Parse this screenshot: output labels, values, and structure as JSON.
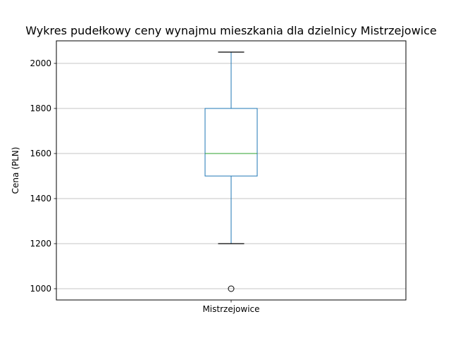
{
  "chart_data": {
    "type": "box",
    "title": "Wykres pudełkowy ceny wynajmu mieszkania dla dzielnicy  Mistrzejowice",
    "xlabel": "",
    "ylabel": "Cena (PLN)",
    "ylim": [
      950,
      2100
    ],
    "grid": true,
    "yticks": [
      1000,
      1200,
      1400,
      1600,
      1800,
      2000
    ],
    "categories": [
      "Mistrzejowice"
    ],
    "boxes": [
      {
        "name": "Mistrzejowice",
        "whisker_low": 1200,
        "q1": 1500,
        "median": 1600,
        "q3": 1800,
        "whisker_high": 2050,
        "outliers": [
          1000
        ]
      }
    ],
    "colors": {
      "box": "#1f77b4",
      "median": "#2ca02c",
      "whisker": "#1f77b4",
      "cap": "#000000",
      "flier": "#000000",
      "grid": "#b0b0b0"
    }
  }
}
